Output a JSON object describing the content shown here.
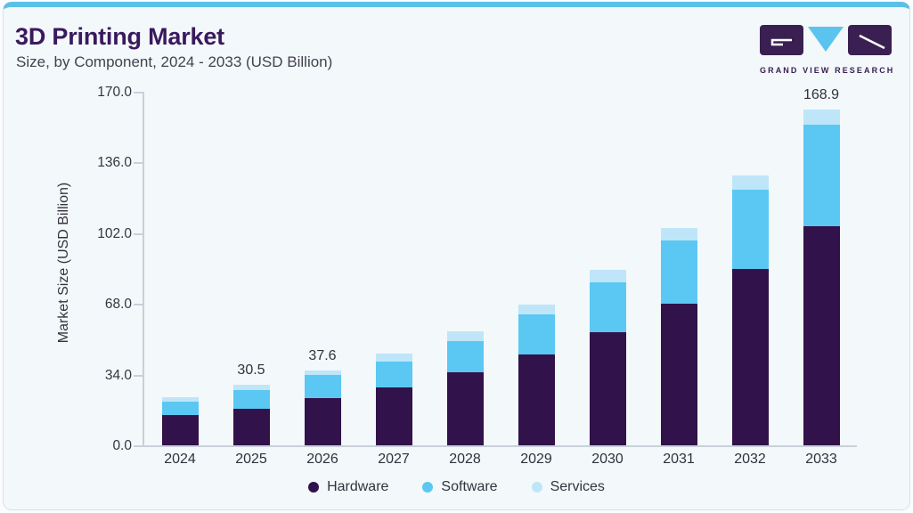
{
  "header": {
    "title": "3D Printing Market",
    "subtitle": "Size, by Component, 2024 - 2033 (USD Billion)"
  },
  "logo": {
    "text": "GRAND VIEW RESEARCH"
  },
  "colors": {
    "accent_strip": "#5BC0E8",
    "title_purple": "#3A195E",
    "hardware": "#32124A",
    "software": "#5AC8F2",
    "services": "#BEE6F8",
    "card_background": "#F3F8FB",
    "axis": "#C8D1D9",
    "text": "#33333E"
  },
  "chart_data": {
    "type": "bar",
    "stacked": true,
    "title": "3D Printing Market Size, by Component, 2024 - 2033 (USD Billion)",
    "xlabel": "",
    "ylabel": "Market Size (USD Billion)",
    "ylim": [
      0,
      170
    ],
    "grid": false,
    "yticks": [
      {
        "value": 0,
        "label": "0.0"
      },
      {
        "value": 34,
        "label": "34.0"
      },
      {
        "value": 68,
        "label": "68.0"
      },
      {
        "value": 102,
        "label": "102.0"
      },
      {
        "value": 136,
        "label": "136.0"
      },
      {
        "value": 170,
        "label": "170.0"
      }
    ],
    "categories": [
      "2024",
      "2025",
      "2026",
      "2027",
      "2028",
      "2029",
      "2030",
      "2031",
      "2032",
      "2033"
    ],
    "series": [
      {
        "name": "Hardware",
        "color": "#32124A",
        "values": [
          15.2,
          18.3,
          23.6,
          29.1,
          36.7,
          45.7,
          57.0,
          71.2,
          88.6,
          110.2
        ]
      },
      {
        "name": "Software",
        "color": "#5AC8F2",
        "values": [
          6.9,
          9.7,
          11.7,
          13.0,
          15.8,
          20.3,
          24.8,
          31.7,
          40.0,
          51.3
        ]
      },
      {
        "name": "Services",
        "color": "#BEE6F8",
        "values": [
          2.1,
          2.5,
          2.3,
          4.0,
          4.8,
          4.9,
          6.4,
          6.5,
          7.3,
          7.4
        ]
      }
    ],
    "totals": [
      24.2,
      30.5,
      37.6,
      46.1,
      57.3,
      70.9,
      88.2,
      109.4,
      135.9,
      168.9
    ],
    "bar_labels": [
      "",
      "30.5",
      "37.6",
      "",
      "",
      "",
      "",
      "",
      "",
      "168.9"
    ],
    "legend": {
      "position": "bottom",
      "items": [
        "Hardware",
        "Software",
        "Services"
      ]
    }
  }
}
